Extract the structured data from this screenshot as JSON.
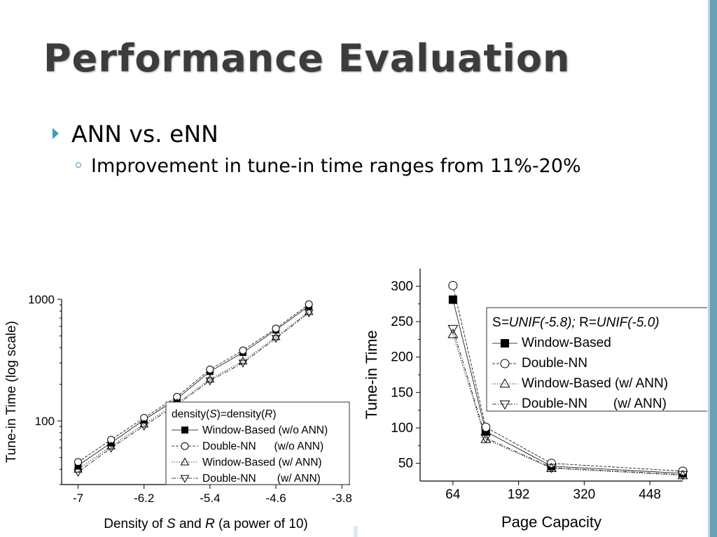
{
  "slide": {
    "title": "Performance Evaluation",
    "bullet_main": "ANN vs. eNN",
    "bullet_sub": "Improvement in tune-in time ranges from 11%-20%"
  },
  "colors": {
    "accent": "#3ea0b8",
    "title": "#3c3c3c"
  },
  "chart_data": [
    {
      "type": "line",
      "title": "",
      "xlabel_parts": [
        "Density of ",
        "S",
        " and ",
        "R",
        " (a power of 10)"
      ],
      "ylabel": "Tune-in Time (log scale)",
      "xlim": [
        -7.2,
        -3.7
      ],
      "ylim": [
        30,
        1000
      ],
      "yscale": "log",
      "x_ticks": [
        -7.0,
        -6.2,
        -5.4,
        -4.6,
        -3.8
      ],
      "y_ticks": [
        100,
        1000
      ],
      "legend_title_parts": [
        "density(",
        "S",
        ")=density(",
        "R",
        ")"
      ],
      "legend_position": "bottom-right",
      "x": [
        -7.0,
        -6.6,
        -6.2,
        -5.8,
        -5.4,
        -5.0,
        -4.6,
        -4.2
      ],
      "series": [
        {
          "name": "Window-Based (w/o ANN)",
          "marker": "square-filled",
          "dash": "solid",
          "values": [
            43,
            66,
            102,
            152,
            255,
            365,
            560,
            880
          ]
        },
        {
          "name": "Double-NN      (w/o ANN)",
          "marker": "circle",
          "dash": "dashed",
          "values": [
            46,
            70,
            106,
            158,
            265,
            380,
            575,
            910
          ]
        },
        {
          "name": "Window-Based (w/ ANN)",
          "marker": "triangle-up",
          "dash": "dotted",
          "values": [
            40,
            62,
            94,
            140,
            220,
            310,
            490,
            790
          ]
        },
        {
          "name": "Double-NN       (w/ ANN)",
          "marker": "triangle-down",
          "dash": "dashdot",
          "values": [
            38,
            60,
            91,
            136,
            214,
            300,
            478,
            775
          ]
        }
      ]
    },
    {
      "type": "line",
      "title": "",
      "xlabel": "Page Capacity",
      "ylabel": "Tune-in Time",
      "xlim": [
        0,
        512
      ],
      "ylim": [
        25,
        325
      ],
      "x_ticks": [
        64,
        192,
        320,
        448
      ],
      "y_ticks": [
        50,
        100,
        150,
        200,
        250,
        300
      ],
      "legend_title_parts": [
        "S",
        "=UNIF(-5.8); ",
        "R",
        "=UNIF(-5.0)"
      ],
      "legend_position": "top-right",
      "x": [
        64,
        128,
        256,
        512
      ],
      "series": [
        {
          "name": "Window-Based",
          "marker": "square-filled",
          "dash": "solid",
          "values": [
            281,
            95,
            46,
            36
          ]
        },
        {
          "name": "Double-NN",
          "marker": "circle",
          "dash": "dashed",
          "values": [
            301,
            101,
            50,
            39
          ]
        },
        {
          "name": "Window-Based (w/ ANN)",
          "marker": "triangle-up",
          "dash": "dotted",
          "values": [
            232,
            84,
            43,
            33
          ]
        },
        {
          "name": "Double-NN       (w/ ANN)",
          "marker": "triangle-down",
          "dash": "dashdot",
          "values": [
            240,
            86,
            44,
            34
          ]
        }
      ]
    }
  ]
}
